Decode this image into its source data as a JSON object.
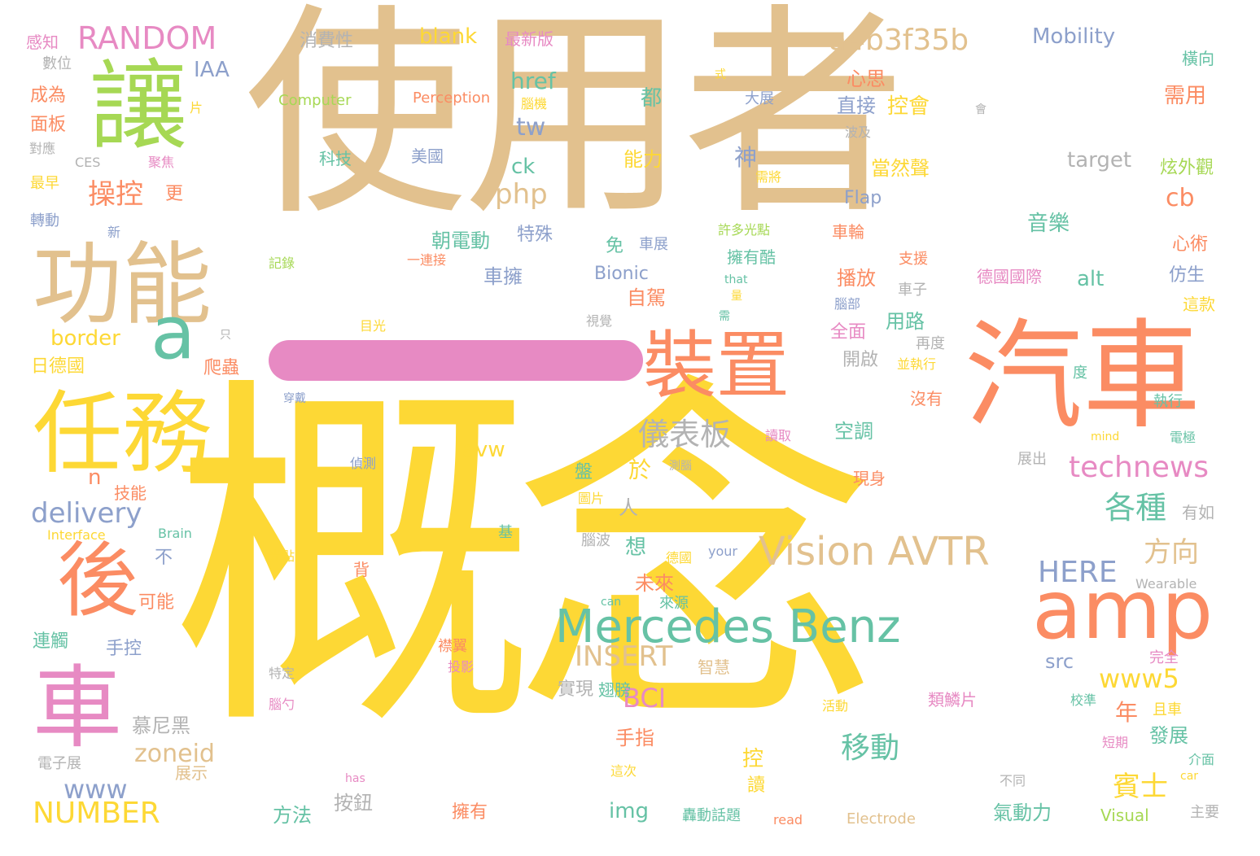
{
  "colors": {
    "tan": "#e2c18e",
    "yellow": "#fdd835",
    "orange": "#fb8c63",
    "green": "#66c2a5",
    "pink": "#e78ac3",
    "lime": "#a6d854",
    "blue": "#8da0cb",
    "gray": "#b3b3b3"
  },
  "words": [
    {
      "t": "使用者",
      "c": "tan",
      "s": 275
    },
    {
      "t": "概念",
      "c": "yellow",
      "s": 450
    },
    {
      "t": "汽車",
      "c": "orange",
      "s": 145
    },
    {
      "t": "讓",
      "c": "lime",
      "s": 120
    },
    {
      "t": "功能",
      "c": "tan",
      "s": 110
    },
    {
      "t": "任務",
      "c": "yellow",
      "s": 110
    },
    {
      "t": "後",
      "c": "orange",
      "s": 100
    },
    {
      "t": "車",
      "c": "pink",
      "s": 110
    },
    {
      "t": "a",
      "c": "green",
      "s": 90
    },
    {
      "t": "裝置",
      "c": "orange",
      "s": 90
    },
    {
      "t": "amp",
      "c": "orange",
      "s": 100
    },
    {
      "t": "Mercedes Benz",
      "c": "green",
      "s": 56
    },
    {
      "t": "Vision AVTR",
      "c": "tan",
      "s": 48
    },
    {
      "t": "RANDOM",
      "c": "pink",
      "s": 38
    },
    {
      "t": "a4b3f35b",
      "c": "tan",
      "s": 36
    },
    {
      "t": "technews",
      "c": "pink",
      "s": 36
    },
    {
      "t": "NUMBER",
      "c": "yellow",
      "s": 36
    },
    {
      "t": "delivery",
      "c": "blue",
      "s": 34
    },
    {
      "t": "INSERT",
      "c": "tan",
      "s": 34
    },
    {
      "t": "HERE",
      "c": "blue",
      "s": 36
    },
    {
      "t": "儀表板",
      "c": "gray",
      "s": 38
    },
    {
      "t": "操控",
      "c": "orange",
      "s": 34
    },
    {
      "t": "php",
      "c": "tan",
      "s": 34
    },
    {
      "t": "各種",
      "c": "green",
      "s": 38
    },
    {
      "t": "方向",
      "c": "tan",
      "s": 34
    },
    {
      "t": "移動",
      "c": "green",
      "s": 36
    },
    {
      "t": "賓士",
      "c": "yellow",
      "s": 34
    },
    {
      "t": "www5",
      "c": "yellow",
      "s": 32
    },
    {
      "t": "BCI",
      "c": "pink",
      "s": 32
    },
    {
      "t": "zoneid",
      "c": "tan",
      "s": 30
    },
    {
      "t": "www",
      "c": "blue",
      "s": 32
    },
    {
      "t": "border",
      "c": "yellow",
      "s": 26
    },
    {
      "t": "blank",
      "c": "yellow",
      "s": 26
    },
    {
      "t": "Mobility",
      "c": "blue",
      "s": 26
    },
    {
      "t": "IAA",
      "c": "blue",
      "s": 26
    },
    {
      "t": "href",
      "c": "green",
      "s": 28
    },
    {
      "t": "tw",
      "c": "blue",
      "s": 30
    },
    {
      "t": "ck",
      "c": "green",
      "s": 26
    },
    {
      "t": "cb",
      "c": "orange",
      "s": 30
    },
    {
      "t": "target",
      "c": "gray",
      "s": 26
    },
    {
      "t": "Flap",
      "c": "blue",
      "s": 22
    },
    {
      "t": "Bionic",
      "c": "blue",
      "s": 22
    },
    {
      "t": "alt",
      "c": "green",
      "s": 26
    },
    {
      "t": "avw",
      "c": "yellow",
      "s": 26
    },
    {
      "t": "n",
      "c": "orange",
      "s": 26
    },
    {
      "t": "src",
      "c": "blue",
      "s": 24
    },
    {
      "t": "img",
      "c": "green",
      "s": 26
    },
    {
      "t": "Computer",
      "c": "lime",
      "s": 18
    },
    {
      "t": "Perception",
      "c": "orange",
      "s": 18
    },
    {
      "t": "CES",
      "c": "gray",
      "s": 16
    },
    {
      "t": "Interface",
      "c": "yellow",
      "s": 16
    },
    {
      "t": "Brain",
      "c": "green",
      "s": 16
    },
    {
      "t": "your",
      "c": "blue",
      "s": 16
    },
    {
      "t": "Wearable",
      "c": "gray",
      "s": 16
    },
    {
      "t": "can",
      "c": "green",
      "s": 14
    },
    {
      "t": "that",
      "c": "green",
      "s": 14
    },
    {
      "t": "mind",
      "c": "yellow",
      "s": 14
    },
    {
      "t": "has",
      "c": "pink",
      "s": 14
    },
    {
      "t": "car",
      "c": "yellow",
      "s": 14
    },
    {
      "t": "read",
      "c": "orange",
      "s": 16
    },
    {
      "t": "Electrode",
      "c": "tan",
      "s": 18
    },
    {
      "t": "Visual",
      "c": "lime",
      "s": 20
    },
    {
      "t": "消費性",
      "c": "gray",
      "s": 22
    },
    {
      "t": "最新版",
      "c": "pink",
      "s": 20
    },
    {
      "t": "感知",
      "c": "pink",
      "s": 20
    },
    {
      "t": "數位",
      "c": "gray",
      "s": 18
    },
    {
      "t": "成為",
      "c": "orange",
      "s": 22
    },
    {
      "t": "面板",
      "c": "orange",
      "s": 22
    },
    {
      "t": "對應",
      "c": "gray",
      "s": 16
    },
    {
      "t": "最早",
      "c": "yellow",
      "s": 18
    },
    {
      "t": "轉動",
      "c": "blue",
      "s": 18
    },
    {
      "t": "聚焦",
      "c": "pink",
      "s": 16
    },
    {
      "t": "更",
      "c": "orange",
      "s": 22
    },
    {
      "t": "新",
      "c": "blue",
      "s": 16
    },
    {
      "t": "記錄",
      "c": "lime",
      "s": 16
    },
    {
      "t": "日德國",
      "c": "yellow",
      "s": 22
    },
    {
      "t": "爬蟲",
      "c": "orange",
      "s": 22
    },
    {
      "t": "只",
      "c": "gray",
      "s": 14
    },
    {
      "t": "目光",
      "c": "yellow",
      "s": 16
    },
    {
      "t": "視覺",
      "c": "gray",
      "s": 16
    },
    {
      "t": "穿戴",
      "c": "blue",
      "s": 14
    },
    {
      "t": "技能",
      "c": "orange",
      "s": 20
    },
    {
      "t": "偵測",
      "c": "blue",
      "s": 16
    },
    {
      "t": "可能",
      "c": "orange",
      "s": 22
    },
    {
      "t": "連觸",
      "c": "green",
      "s": 22
    },
    {
      "t": "手控",
      "c": "blue",
      "s": 22
    },
    {
      "t": "慕尼黑",
      "c": "gray",
      "s": 24
    },
    {
      "t": "電子展",
      "c": "gray",
      "s": 18
    },
    {
      "t": "展示",
      "c": "tan",
      "s": 20
    },
    {
      "t": "方法",
      "c": "green",
      "s": 24
    },
    {
      "t": "按鈕",
      "c": "gray",
      "s": 24
    },
    {
      "t": "擁有",
      "c": "orange",
      "s": 22
    },
    {
      "t": "轟動話題",
      "c": "green",
      "s": 18
    },
    {
      "t": "氣動力",
      "c": "green",
      "s": 24
    },
    {
      "t": "實現",
      "c": "gray",
      "s": 22
    },
    {
      "t": "手指",
      "c": "orange",
      "s": 24
    },
    {
      "t": "智慧",
      "c": "tan",
      "s": 20
    },
    {
      "t": "翅膀",
      "c": "green",
      "s": 20
    },
    {
      "t": "控會",
      "c": "yellow",
      "s": 26
    },
    {
      "t": "心思",
      "c": "orange",
      "s": 24
    },
    {
      "t": "直接",
      "c": "blue",
      "s": 24
    },
    {
      "t": "當然聲",
      "c": "yellow",
      "s": 24
    },
    {
      "t": "音樂",
      "c": "green",
      "s": 26
    },
    {
      "t": "需用",
      "c": "orange",
      "s": 26
    },
    {
      "t": "橫向",
      "c": "green",
      "s": 20
    },
    {
      "t": "炫外觀",
      "c": "lime",
      "s": 22
    },
    {
      "t": "會",
      "c": "gray",
      "s": 14
    },
    {
      "t": "波及",
      "c": "gray",
      "s": 16
    },
    {
      "t": "大展",
      "c": "blue",
      "s": 18
    },
    {
      "t": "腦機",
      "c": "yellow",
      "s": 16
    },
    {
      "t": "式",
      "c": "yellow",
      "s": 14
    },
    {
      "t": "片",
      "c": "yellow",
      "s": 16
    },
    {
      "t": "科技",
      "c": "green",
      "s": 20
    },
    {
      "t": "美國",
      "c": "blue",
      "s": 20
    },
    {
      "t": "能力",
      "c": "yellow",
      "s": 24
    },
    {
      "t": "需將",
      "c": "yellow",
      "s": 16
    },
    {
      "t": "許多光點",
      "c": "lime",
      "s": 16
    },
    {
      "t": "車展",
      "c": "blue",
      "s": 18
    },
    {
      "t": "擁有酷",
      "c": "green",
      "s": 20
    },
    {
      "t": "朝電動",
      "c": "green",
      "s": 24
    },
    {
      "t": "特殊",
      "c": "blue",
      "s": 22
    },
    {
      "t": "車擁",
      "c": "blue",
      "s": 24
    },
    {
      "t": "免",
      "c": "green",
      "s": 22
    },
    {
      "t": "自駕",
      "c": "orange",
      "s": 24
    },
    {
      "t": "一連接",
      "c": "orange",
      "s": 16
    },
    {
      "t": "車輪",
      "c": "orange",
      "s": 20
    },
    {
      "t": "支援",
      "c": "orange",
      "s": 18
    },
    {
      "t": "德國國際",
      "c": "pink",
      "s": 20
    },
    {
      "t": "仿生",
      "c": "blue",
      "s": 22
    },
    {
      "t": "心術",
      "c": "orange",
      "s": 22
    },
    {
      "t": "這款",
      "c": "yellow",
      "s": 20
    },
    {
      "t": "播放",
      "c": "orange",
      "s": 24
    },
    {
      "t": "車子",
      "c": "gray",
      "s": 18
    },
    {
      "t": "腦部",
      "c": "blue",
      "s": 16
    },
    {
      "t": "量",
      "c": "yellow",
      "s": 14
    },
    {
      "t": "需",
      "c": "green",
      "s": 14
    },
    {
      "t": "全面",
      "c": "pink",
      "s": 22
    },
    {
      "t": "用路",
      "c": "green",
      "s": 24
    },
    {
      "t": "開啟",
      "c": "gray",
      "s": 22
    },
    {
      "t": "再度",
      "c": "gray",
      "s": 18
    },
    {
      "t": "並執行",
      "c": "yellow",
      "s": 16
    },
    {
      "t": "度",
      "c": "green",
      "s": 18
    },
    {
      "t": "執行",
      "c": "green",
      "s": 18
    },
    {
      "t": "沒有",
      "c": "orange",
      "s": 20
    },
    {
      "t": "空調",
      "c": "green",
      "s": 24
    },
    {
      "t": "讀取",
      "c": "pink",
      "s": 16
    },
    {
      "t": "電極",
      "c": "green",
      "s": 16
    },
    {
      "t": "測腦",
      "c": "gray",
      "s": 14
    },
    {
      "t": "展出",
      "c": "gray",
      "s": 18
    },
    {
      "t": "現身",
      "c": "orange",
      "s": 20
    },
    {
      "t": "有如",
      "c": "gray",
      "s": 20
    },
    {
      "t": "圖片",
      "c": "yellow",
      "s": 16
    },
    {
      "t": "腦波",
      "c": "gray",
      "s": 18
    },
    {
      "t": "來源",
      "c": "green",
      "s": 18
    },
    {
      "t": "德國",
      "c": "yellow",
      "s": 16
    },
    {
      "t": "光點",
      "c": "yellow",
      "s": 16
    },
    {
      "t": "背",
      "c": "orange",
      "s": 20
    },
    {
      "t": "不",
      "c": "blue",
      "s": 22
    },
    {
      "t": "想",
      "c": "green",
      "s": 26
    },
    {
      "t": "人",
      "c": "gray",
      "s": 24
    },
    {
      "t": "於",
      "c": "yellow",
      "s": 28
    },
    {
      "t": "未來",
      "c": "orange",
      "s": 24
    },
    {
      "t": "都",
      "c": "green",
      "s": 26
    },
    {
      "t": "神",
      "c": "blue",
      "s": 28
    },
    {
      "t": "年",
      "c": "orange",
      "s": 28
    },
    {
      "t": "發展",
      "c": "green",
      "s": 24
    },
    {
      "t": "且車",
      "c": "yellow",
      "s": 18
    },
    {
      "t": "類鱗片",
      "c": "pink",
      "s": 20
    },
    {
      "t": "校準",
      "c": "green",
      "s": 16
    },
    {
      "t": "短期",
      "c": "pink",
      "s": 16
    },
    {
      "t": "介面",
      "c": "green",
      "s": 16
    },
    {
      "t": "完全",
      "c": "pink",
      "s": 18
    },
    {
      "t": "主要",
      "c": "gray",
      "s": 18
    },
    {
      "t": "不同",
      "c": "gray",
      "s": 16
    },
    {
      "t": "活動",
      "c": "yellow",
      "s": 16
    },
    {
      "t": "這次",
      "c": "yellow",
      "s": 16
    },
    {
      "t": "襟翼",
      "c": "orange",
      "s": 18
    },
    {
      "t": "投影",
      "c": "pink",
      "s": 16
    },
    {
      "t": "特定",
      "c": "gray",
      "s": 16
    },
    {
      "t": "腦勺",
      "c": "pink",
      "s": 16
    },
    {
      "t": "盤",
      "c": "green",
      "s": 22
    },
    {
      "t": "基",
      "c": "green",
      "s": 18
    },
    {
      "t": "控",
      "c": "yellow",
      "s": 26
    },
    {
      "t": "讀",
      "c": "yellow",
      "s": 22
    }
  ]
}
